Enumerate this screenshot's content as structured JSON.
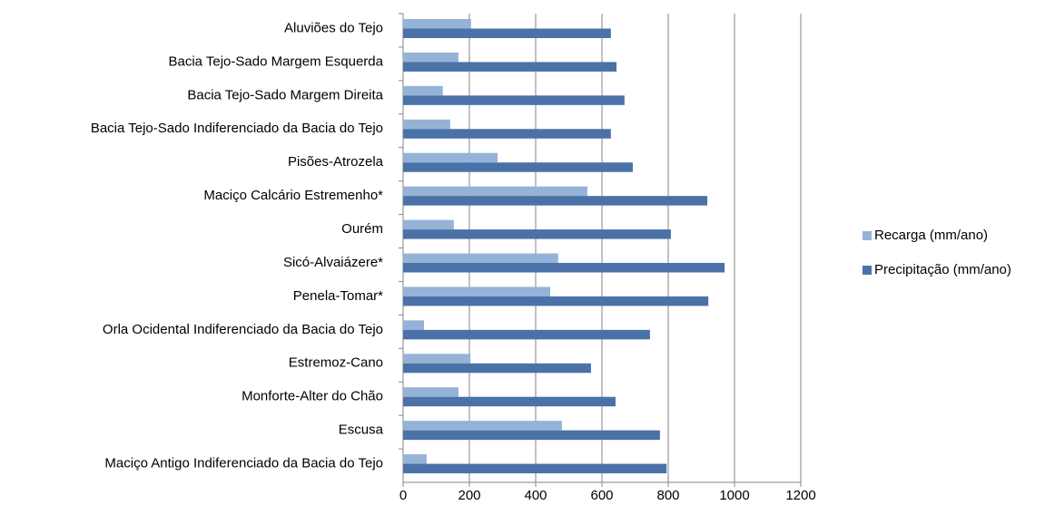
{
  "chart_data": {
    "type": "hbar",
    "categories": [
      "Aluviões do Tejo",
      "Bacia Tejo-Sado Margem Esquerda",
      "Bacia Tejo-Sado Margem Direita",
      "Bacia Tejo-Sado Indiferenciado da Bacia do Tejo",
      "Pisões-Atrozela",
      "Maciço Calcário Estremenho*",
      "Ourém",
      "Sicó-Alvaiázere*",
      "Penela-Tomar*",
      "Orla Ocidental Indiferenciado da Bacia do Tejo",
      "Estremoz-Cano",
      "Monforte-Alter do Chão",
      "Escusa",
      "Maciço Antigo Indiferenciado da Bacia do Tejo"
    ],
    "series": [
      {
        "name": "Recarga (mm/ano)",
        "color": "#95b3d7",
        "values": [
          205,
          167,
          120,
          142,
          285,
          556,
          153,
          468,
          444,
          63,
          203,
          167,
          479,
          71
        ]
      },
      {
        "name": "Precipitação (mm/ano)",
        "color": "#4a72a8",
        "values": [
          627,
          644,
          668,
          627,
          693,
          918,
          808,
          970,
          921,
          745,
          567,
          641,
          775,
          795
        ]
      }
    ],
    "xlim": [
      0,
      1200
    ],
    "xticks": [
      0,
      200,
      400,
      600,
      800,
      1000,
      1200
    ],
    "grid": true,
    "legend": "right"
  }
}
